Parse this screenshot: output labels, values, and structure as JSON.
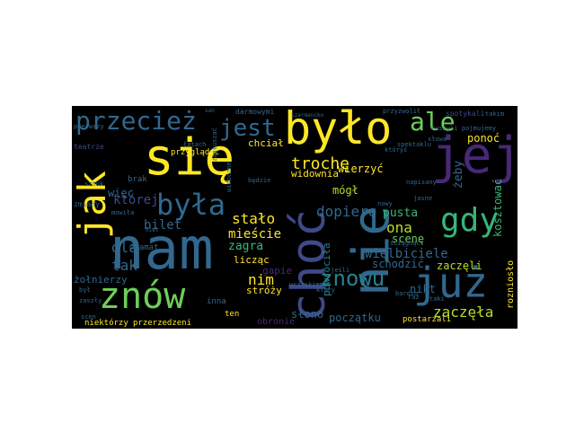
{
  "palette": {
    "background": "#000000",
    "yellow": "#fde725",
    "lime": "#b5de2b",
    "green": "#6ece58",
    "teal": "#35b779",
    "aqua": "#1f9e89",
    "blue": "#26828e",
    "steel": "#31688e",
    "indigo": "#3e4989",
    "purple": "#482878",
    "violet": "#440154"
  },
  "words": [
    {
      "text": "się",
      "color": "yellow"
    },
    {
      "text": "jej",
      "color": "purple"
    },
    {
      "text": "nam",
      "color": "steel"
    },
    {
      "text": "nie",
      "color": "steel"
    },
    {
      "text": "choć",
      "color": "indigo"
    },
    {
      "text": "było",
      "color": "yellow"
    },
    {
      "text": "już",
      "color": "steel"
    },
    {
      "text": "jak",
      "color": "yellow"
    },
    {
      "text": "znów",
      "color": "green"
    },
    {
      "text": "była",
      "color": "steel"
    },
    {
      "text": "gdy",
      "color": "teal"
    },
    {
      "text": "przecież",
      "color": "steel"
    },
    {
      "text": "jest",
      "color": "steel"
    },
    {
      "text": "ale",
      "color": "green"
    },
    {
      "text": "znowu",
      "color": "blue"
    },
    {
      "text": "której",
      "color": "indigo"
    },
    {
      "text": "trochę",
      "color": "yellow"
    },
    {
      "text": "dopiero",
      "color": "steel"
    },
    {
      "text": "stało",
      "color": "yellow"
    },
    {
      "text": "ona",
      "color": "lime"
    },
    {
      "text": "dla",
      "color": "steel"
    },
    {
      "text": "tak",
      "color": "steel"
    },
    {
      "text": "nim",
      "color": "yellow"
    },
    {
      "text": "zaczęła",
      "color": "lime"
    },
    {
      "text": "bilet",
      "color": "steel"
    },
    {
      "text": "wielbiciele",
      "color": "steel"
    },
    {
      "text": "pusta",
      "color": "teal"
    },
    {
      "text": "mieście",
      "color": "yellow"
    },
    {
      "text": "zagra",
      "color": "teal"
    },
    {
      "text": "ponoć",
      "color": "yellow"
    },
    {
      "text": "żeby",
      "color": "steel"
    },
    {
      "text": "scenę",
      "color": "green"
    },
    {
      "text": "wierzyć",
      "color": "yellow"
    },
    {
      "text": "więc",
      "color": "steel"
    },
    {
      "text": "widownia",
      "color": "yellow"
    },
    {
      "text": "mógł",
      "color": "lime"
    },
    {
      "text": "kosztować",
      "color": "teal"
    },
    {
      "text": "chciał",
      "color": "yellow"
    },
    {
      "text": "zaczęli",
      "color": "lime"
    },
    {
      "text": "schodzić",
      "color": "steel"
    },
    {
      "text": "powróciła",
      "color": "blue"
    },
    {
      "text": "słono",
      "color": "steel"
    },
    {
      "text": "początku",
      "color": "steel"
    },
    {
      "text": "nikt",
      "color": "steel"
    },
    {
      "text": "stróży",
      "color": "yellow"
    },
    {
      "text": "licząc",
      "color": "yellow"
    },
    {
      "text": "żołnierzy",
      "color": "steel"
    },
    {
      "text": "gapie",
      "color": "purple"
    },
    {
      "text": "rozniosło",
      "color": "yellow"
    },
    {
      "text": "niektórzy",
      "color": "yellow"
    },
    {
      "text": "przerzedzeni",
      "color": "yellow"
    },
    {
      "text": "dramat",
      "color": "steel"
    },
    {
      "text": "brak",
      "color": "steel"
    },
    {
      "text": "postarzali",
      "color": "yellow"
    },
    {
      "text": "obronie",
      "color": "purple"
    },
    {
      "text": "ten",
      "color": "yellow"
    },
    {
      "text": "inna",
      "color": "steel"
    },
    {
      "text": "darmowymi",
      "color": "steel"
    },
    {
      "text": "przyglądać",
      "color": "yellow"
    },
    {
      "text": "spotykali",
      "color": "indigo"
    },
    {
      "text": "szarmancko",
      "color": "steel"
    },
    {
      "text": "przyzwolił",
      "color": "steel"
    },
    {
      "text": "pierwszy",
      "color": "steel"
    },
    {
      "text": "spektaklu",
      "color": "steel"
    },
    {
      "text": "sztuk",
      "color": "steel"
    },
    {
      "text": "łatach",
      "color": "steel"
    },
    {
      "text": "pojmujemy",
      "color": "steel"
    },
    {
      "text": "teatrze",
      "color": "indigo"
    },
    {
      "text": "zmiany",
      "color": "steel"
    },
    {
      "text": "wrzaskiem",
      "color": "steel"
    },
    {
      "text": "będzie",
      "color": "steel"
    },
    {
      "text": "jeśli",
      "color": "steel"
    },
    {
      "text": "bardzo",
      "color": "steel"
    },
    {
      "text": "słowa",
      "color": "steel"
    },
    {
      "text": "napisany",
      "color": "steel"
    },
    {
      "text": "nowy",
      "color": "steel"
    },
    {
      "text": "jasne",
      "color": "steel"
    },
    {
      "text": "zagłuszać",
      "color": "steel"
    },
    {
      "text": "widoczne",
      "color": "steel"
    },
    {
      "text": "taki",
      "color": "steel"
    },
    {
      "text": "takim",
      "color": "steel"
    },
    {
      "text": "ściągnąć",
      "color": "steel"
    },
    {
      "text": "raz",
      "color": "steel"
    },
    {
      "text": "był",
      "color": "steel"
    },
    {
      "text": "scen",
      "color": "steel"
    },
    {
      "text": "zaszły",
      "color": "steel"
    },
    {
      "text": "który",
      "color": "steel"
    },
    {
      "text": "któryś",
      "color": "steel"
    },
    {
      "text": "ruszyli",
      "color": "steel"
    },
    {
      "text": "mowiła",
      "color": "steel"
    },
    {
      "text": "niel",
      "color": "steel"
    },
    {
      "text": "san",
      "color": "steel"
    }
  ]
}
